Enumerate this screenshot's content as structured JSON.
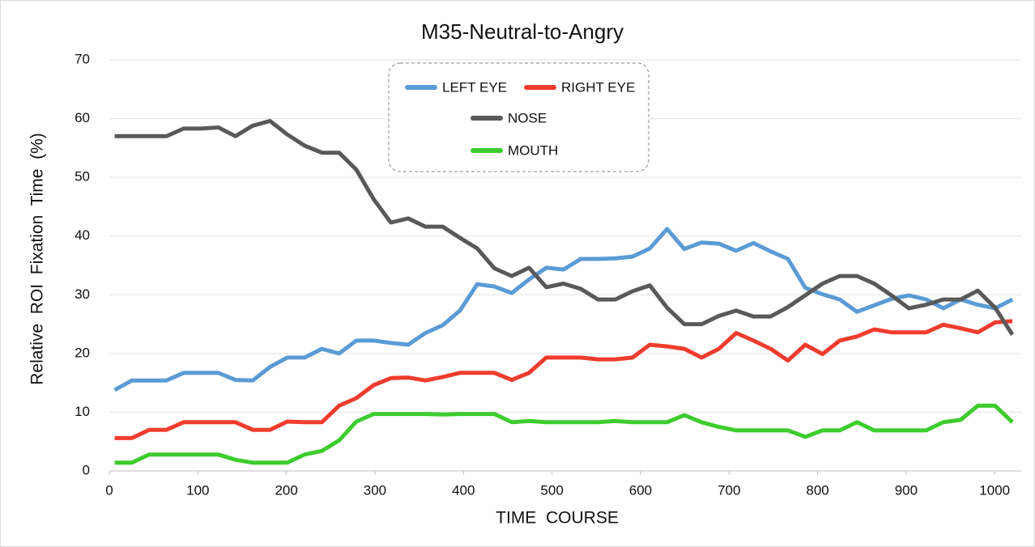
{
  "chart_data": {
    "type": "line",
    "title": "M35-Neutral-to-Angry",
    "x_label": "TIME  COURSE",
    "y_label": "Relative  ROI  Fixation  Time  (%)",
    "x": [
      6,
      25.5,
      45,
      64.5,
      84,
      103.5,
      123,
      142.5,
      162,
      181.5,
      201,
      220.5,
      240,
      259.5,
      279,
      298.5,
      318,
      337.5,
      357,
      376.5,
      396,
      415.5,
      435,
      454.5,
      474,
      493.5,
      513,
      532.5,
      552,
      571.5,
      591,
      610.5,
      630,
      649.5,
      669,
      688.5,
      708,
      727.5,
      747,
      766.5,
      786,
      805.5,
      825,
      844.5,
      864,
      883.5,
      903,
      922.5,
      942,
      961.5,
      981,
      1000.5,
      1020
    ],
    "series": [
      {
        "name": "LEFT EYE",
        "color": "#5b9bd5",
        "values": [
          13.8,
          15.4,
          15.4,
          15.4,
          16.7,
          16.7,
          16.7,
          15.5,
          15.4,
          17.7,
          19.3,
          19.3,
          20.8,
          20.0,
          22.2,
          22.2,
          21.8,
          21.5,
          23.5,
          24.8,
          27.3,
          31.8,
          31.4,
          30.3,
          32.6,
          34.6,
          34.3,
          36.1,
          36.1,
          36.2,
          36.5,
          37.9,
          41.2,
          37.8,
          38.9,
          38.7,
          37.5,
          38.8,
          37.4,
          36.1,
          31.2,
          30.1,
          29.2,
          27.1,
          28.2,
          29.3,
          29.9,
          29.2,
          27.7,
          29.2,
          28.3,
          27.7,
          29.2
        ]
      },
      {
        "name": "RIGHT EYE",
        "color": "#f03c2e",
        "values": [
          5.6,
          5.6,
          7.0,
          7.0,
          8.3,
          8.3,
          8.3,
          8.3,
          7.0,
          7.0,
          8.4,
          8.3,
          8.3,
          11.1,
          12.4,
          14.6,
          15.8,
          15.9,
          15.4,
          16.0,
          16.7,
          16.7,
          16.7,
          15.5,
          16.7,
          19.3,
          19.3,
          19.3,
          19.0,
          19.0,
          19.3,
          21.5,
          21.2,
          20.8,
          19.3,
          20.8,
          23.5,
          22.2,
          20.8,
          18.8,
          21.5,
          19.9,
          22.2,
          22.9,
          24.1,
          23.6,
          23.6,
          23.6,
          24.9,
          24.3,
          23.6,
          25.3,
          25.5
        ]
      },
      {
        "name": "NOSE",
        "color": "#595959",
        "values": [
          57,
          57,
          57,
          57,
          58.3,
          58.3,
          58.5,
          57,
          58.8,
          59.6,
          57.3,
          55.4,
          54.2,
          54.2,
          51.3,
          46.3,
          42.3,
          43,
          41.6,
          41.6,
          39.7,
          37.9,
          34.5,
          33.2,
          34.6,
          31.3,
          31.9,
          31,
          29.2,
          29.2,
          30.6,
          31.6,
          27.8,
          25,
          25,
          26.4,
          27.3,
          26.3,
          26.3,
          27.9,
          29.9,
          31.9,
          33.2,
          33.2,
          31.9,
          29.9,
          27.7,
          28.3,
          29.2,
          29.2,
          30.7,
          27.8,
          23.2
        ]
      },
      {
        "name": "MOUTH",
        "color": "#3dcc2e",
        "values": [
          1.4,
          1.4,
          2.8,
          2.8,
          2.8,
          2.8,
          2.8,
          1.9,
          1.4,
          1.4,
          1.4,
          2.8,
          3.4,
          5.2,
          8.4,
          9.7,
          9.7,
          9.7,
          9.7,
          9.6,
          9.7,
          9.7,
          9.7,
          8.3,
          8.5,
          8.3,
          8.3,
          8.3,
          8.3,
          8.5,
          8.3,
          8.3,
          8.3,
          9.5,
          8.3,
          7.5,
          6.9,
          6.9,
          6.9,
          6.9,
          5.8,
          6.9,
          6.9,
          8.3,
          6.9,
          6.9,
          6.9,
          6.9,
          8.3,
          8.7,
          11.1,
          11.1,
          8.3
        ]
      }
    ],
    "xlim": [
      0,
      1030
    ],
    "xticks": [
      0,
      100,
      200,
      300,
      400,
      500,
      600,
      700,
      800,
      900,
      1000
    ],
    "ylim": [
      0,
      70
    ],
    "yticks": [
      0,
      10,
      20,
      30,
      40,
      50,
      60,
      70
    ],
    "grid": true
  }
}
